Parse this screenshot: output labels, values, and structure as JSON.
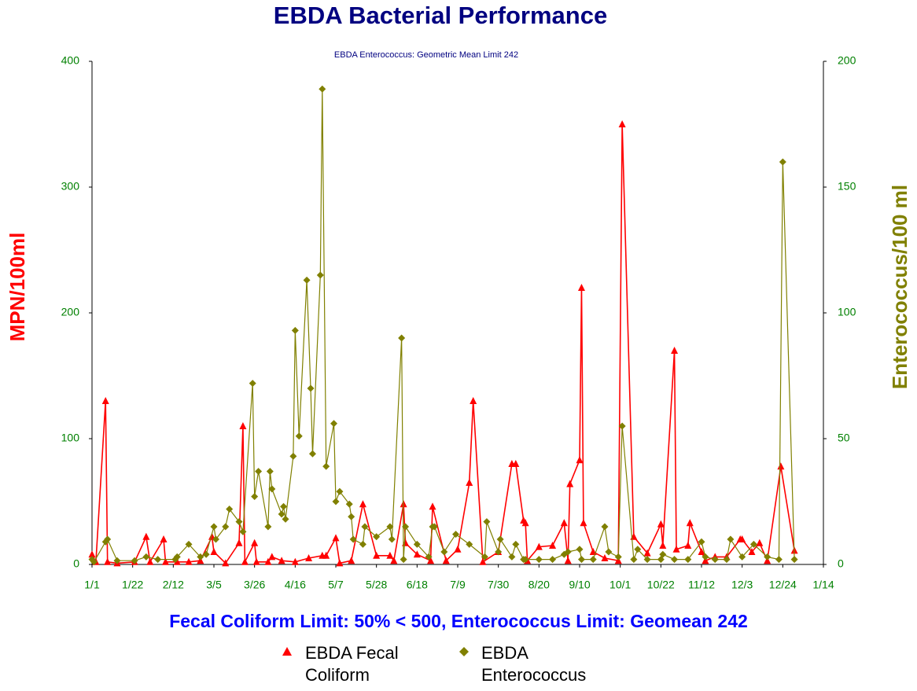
{
  "chart_data": {
    "type": "line",
    "title": "EBDA Bacterial Performance",
    "subtitle": "EBDA Enterococcus: Geometric Mean Limit 242",
    "y_label": "MPN/100ml",
    "y2_label": "Enterococcus/100 ml",
    "footer": "Fecal Coliform Limit: 50% < 500, Enterococcus Limit: Geomean 242",
    "xlim": [
      0,
      378
    ],
    "xticks": [
      {
        "value": 0,
        "label": "1/1"
      },
      {
        "value": 21,
        "label": "1/22"
      },
      {
        "value": 42,
        "label": "2/12"
      },
      {
        "value": 63,
        "label": "3/5"
      },
      {
        "value": 84,
        "label": "3/26"
      },
      {
        "value": 105,
        "label": "4/16"
      },
      {
        "value": 126,
        "label": "5/7"
      },
      {
        "value": 147,
        "label": "5/28"
      },
      {
        "value": 168,
        "label": "6/18"
      },
      {
        "value": 189,
        "label": "7/9"
      },
      {
        "value": 210,
        "label": "7/30"
      },
      {
        "value": 231,
        "label": "8/20"
      },
      {
        "value": 252,
        "label": "9/10"
      },
      {
        "value": 273,
        "label": "10/1"
      },
      {
        "value": 294,
        "label": "10/22"
      },
      {
        "value": 315,
        "label": "11/12"
      },
      {
        "value": 336,
        "label": "12/3"
      },
      {
        "value": 357,
        "label": "12/24"
      },
      {
        "value": 378,
        "label": "1/14"
      }
    ],
    "ylim": [
      0,
      400
    ],
    "yticks": [
      0,
      100,
      200,
      300,
      400
    ],
    "y2lim": [
      0,
      200
    ],
    "y2ticks": [
      0,
      50,
      100,
      150,
      200
    ],
    "series": [
      {
        "name": "EBDA Fecal Coliform",
        "color": "#ff0000",
        "marker": "triangle",
        "axis": "y",
        "x": [
          0,
          2,
          7,
          8,
          13,
          22,
          28,
          30,
          37,
          38,
          44,
          50,
          56,
          62,
          63,
          69,
          76,
          78,
          79,
          84,
          85,
          91,
          93,
          98,
          105,
          112,
          119,
          121,
          126,
          128,
          134,
          140,
          147,
          154,
          156,
          161,
          162,
          168,
          175,
          176,
          183,
          189,
          195,
          197,
          202,
          210,
          217,
          219,
          223,
          224,
          225,
          231,
          238,
          244,
          246,
          247,
          252,
          253,
          254,
          259,
          265,
          272,
          274,
          280,
          287,
          294,
          295,
          301,
          302,
          308,
          309,
          315,
          317,
          322,
          328,
          335,
          336,
          341,
          345,
          349,
          356,
          363
        ],
        "values": [
          8,
          2,
          130,
          2,
          1,
          2,
          22,
          2,
          20,
          2,
          2,
          2,
          3,
          22,
          10,
          1,
          17,
          110,
          2,
          17,
          2,
          2,
          6,
          3,
          2,
          5,
          7,
          7,
          21,
          1,
          3,
          48,
          7,
          7,
          3,
          48,
          17,
          8,
          3,
          46,
          3,
          12,
          65,
          130,
          2,
          10,
          80,
          80,
          35,
          33,
          3,
          14,
          15,
          33,
          3,
          64,
          83,
          220,
          33,
          10,
          5,
          3,
          350,
          22,
          9,
          32,
          15,
          170,
          12,
          15,
          33,
          10,
          3,
          6,
          6,
          20,
          20,
          10,
          17,
          3,
          78,
          11
        ]
      },
      {
        "name": "EBDA Enterococcus",
        "color": "#808000",
        "marker": "diamond",
        "axis": "y2",
        "x": [
          0,
          1,
          7,
          8,
          13,
          22,
          28,
          34,
          43,
          44,
          50,
          56,
          59,
          63,
          64,
          69,
          71,
          76,
          78,
          83,
          84,
          86,
          91,
          92,
          93,
          98,
          99,
          100,
          104,
          105,
          107,
          111,
          113,
          114,
          118,
          119,
          121,
          125,
          126,
          128,
          133,
          134,
          135,
          140,
          141,
          147,
          154,
          155,
          160,
          161,
          162,
          168,
          174,
          176,
          177,
          182,
          188,
          195,
          203,
          204,
          210,
          211,
          217,
          219,
          223,
          224,
          231,
          238,
          244,
          246,
          252,
          253,
          259,
          265,
          267,
          272,
          274,
          280,
          282,
          287,
          294,
          295,
          301,
          308,
          315,
          317,
          322,
          328,
          330,
          336,
          342,
          349,
          355,
          357,
          363
        ],
        "values": [
          2,
          1,
          9,
          10,
          1.5,
          1.5,
          3,
          2,
          2,
          3,
          8,
          3,
          4,
          15,
          10,
          15,
          22,
          17,
          13,
          72,
          27,
          37,
          15,
          37,
          30,
          20,
          23,
          18,
          43,
          93,
          51,
          113,
          70,
          44,
          115,
          189,
          39,
          56,
          25,
          29,
          24,
          19,
          10,
          8,
          15,
          11,
          15,
          10,
          90,
          2,
          15,
          8,
          3,
          15,
          15,
          5,
          12,
          8,
          3,
          17,
          5,
          10,
          3,
          8,
          2,
          2,
          2,
          2,
          4,
          5,
          6,
          2,
          2,
          15,
          5,
          3,
          55,
          2,
          6,
          2,
          2,
          4,
          2,
          2,
          9,
          3,
          2,
          2,
          10,
          3,
          8,
          3,
          2,
          160,
          2
        ]
      }
    ]
  }
}
